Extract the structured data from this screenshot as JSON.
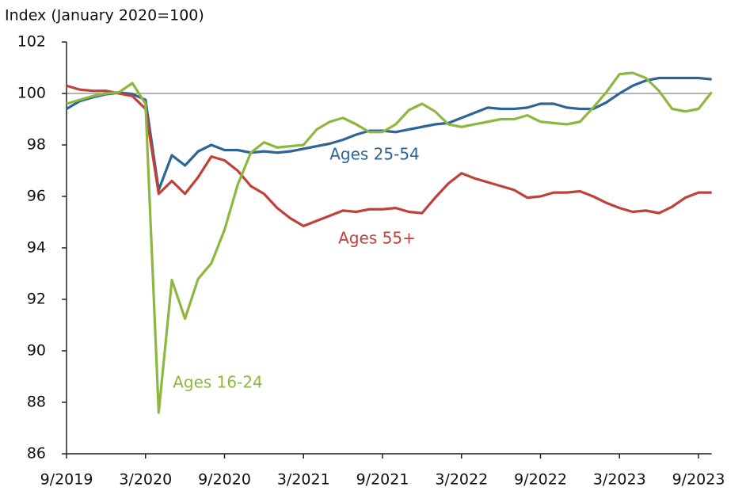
{
  "chart_data": {
    "type": "line",
    "ylabel": "Index (January 2020=100)",
    "categories": [
      "9/2019",
      null,
      null,
      null,
      null,
      null,
      "3/2020",
      null,
      null,
      null,
      null,
      null,
      "9/2020",
      null,
      null,
      null,
      null,
      null,
      "3/2021",
      null,
      null,
      null,
      null,
      null,
      "9/2021",
      null,
      null,
      null,
      null,
      null,
      "3/2022",
      null,
      null,
      null,
      null,
      null,
      "9/2022",
      null,
      null,
      null,
      null,
      null,
      "3/2023",
      null,
      null,
      null,
      null,
      null,
      "9/2023",
      null
    ],
    "series": [
      {
        "name": "Ages 25-54",
        "color": "#2e6496",
        "values": [
          99.4,
          99.7,
          99.85,
          99.97,
          100.03,
          99.98,
          99.75,
          96.25,
          97.6,
          97.2,
          97.75,
          98.0,
          97.8,
          97.8,
          97.7,
          97.75,
          97.7,
          97.75,
          97.85,
          97.95,
          98.05,
          98.2,
          98.4,
          98.55,
          98.55,
          98.5,
          98.6,
          98.7,
          98.8,
          98.85,
          99.05,
          99.25,
          99.45,
          99.4,
          99.4,
          99.45,
          99.6,
          99.6,
          99.45,
          99.4,
          99.4,
          99.65,
          100.0,
          100.3,
          100.5,
          100.6,
          100.6,
          100.6,
          100.6,
          100.55
        ]
      },
      {
        "name": "Ages 55+",
        "color": "#c0403a",
        "values": [
          100.3,
          100.15,
          100.1,
          100.1,
          100.0,
          99.9,
          99.4,
          96.1,
          96.6,
          96.1,
          96.75,
          97.55,
          97.4,
          97.0,
          96.4,
          96.1,
          95.55,
          95.15,
          94.85,
          95.05,
          95.25,
          95.45,
          95.4,
          95.5,
          95.5,
          95.55,
          95.4,
          95.35,
          95.95,
          96.5,
          96.9,
          96.7,
          96.55,
          96.4,
          96.25,
          95.95,
          96.0,
          96.15,
          96.15,
          96.2,
          96.0,
          95.75,
          95.55,
          95.4,
          95.45,
          95.35,
          95.6,
          95.95,
          96.15,
          96.15
        ]
      },
      {
        "name": "Ages 16-24",
        "color": "#8db73f",
        "values": [
          99.6,
          99.75,
          99.9,
          100.0,
          100.05,
          100.4,
          99.6,
          87.6,
          92.75,
          91.25,
          92.8,
          93.4,
          94.7,
          96.45,
          97.7,
          98.1,
          97.9,
          97.95,
          98.0,
          98.6,
          98.9,
          99.05,
          98.8,
          98.5,
          98.5,
          98.8,
          99.35,
          99.6,
          99.3,
          98.8,
          98.7,
          98.8,
          98.9,
          99.0,
          99.0,
          99.15,
          98.9,
          98.85,
          98.8,
          98.9,
          99.45,
          100.05,
          100.75,
          100.8,
          100.6,
          100.1,
          99.4,
          99.3,
          99.4,
          100.05
        ]
      }
    ],
    "ylim": [
      86,
      102
    ],
    "yticks": [
      86,
      88,
      90,
      92,
      94,
      96,
      98,
      100,
      102
    ],
    "reference_line": 100
  }
}
